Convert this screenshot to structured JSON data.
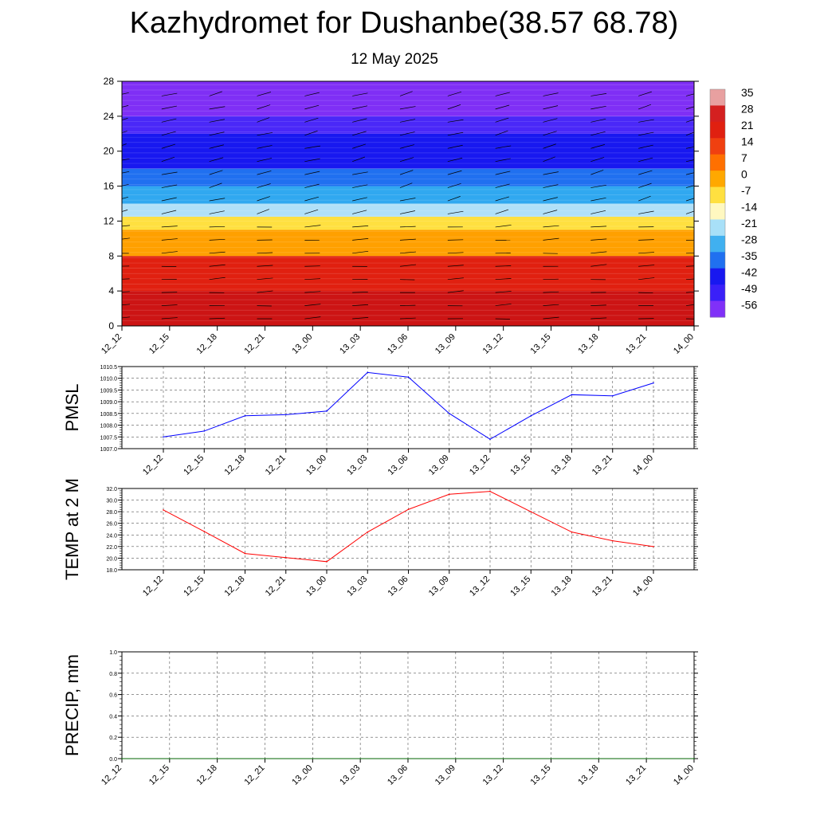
{
  "title": "Kazhydromet for Dushanbe(38.57 68.78)",
  "subtitle": "12 May 2025",
  "colors": {
    "pmsl_line": "#0000ff",
    "temp_line": "#ff0000",
    "precip_line": "#006400",
    "grid": "#555555"
  },
  "chart_data": [
    {
      "type": "heatmap",
      "name": "upper-air-cross-section",
      "x_tick_labels": [
        "12_12",
        "12_15",
        "12_18",
        "12_21",
        "13_00",
        "13_03",
        "13_06",
        "13_09",
        "13_12",
        "13_15",
        "13_18",
        "13_21",
        "14_00"
      ],
      "ylim": [
        0,
        28
      ],
      "y_tick_labels": [
        "0",
        "4",
        "8",
        "12",
        "16",
        "20",
        "24",
        "28"
      ],
      "fill": "temperature contours with wind barbs and circles",
      "colorbar": {
        "labels": [
          "35",
          "28",
          "21",
          "14",
          "7",
          "0",
          "-7",
          "-14",
          "-21",
          "-28",
          "-35",
          "-42",
          "-49",
          "-56"
        ],
        "colors": [
          "#e8a0a0",
          "#d42020",
          "#e02010",
          "#f04010",
          "#ff7000",
          "#ffa800",
          "#ffe040",
          "#fff8c0",
          "#a8e0f8",
          "#40b0f0",
          "#2070f0",
          "#1818f0",
          "#3a20f8",
          "#8030f8"
        ]
      },
      "layers": [
        {
          "y": [
            0,
            4
          ],
          "color": "#cc1414"
        },
        {
          "y": [
            4,
            8
          ],
          "color": "#e02010"
        },
        {
          "y": [
            8,
            11
          ],
          "color": "#ffa000"
        },
        {
          "y": [
            11,
            12.5
          ],
          "color": "#ffe040"
        },
        {
          "y": [
            12.5,
            14
          ],
          "color": "#b0e0f8"
        },
        {
          "y": [
            14,
            16
          ],
          "color": "#30a8f0"
        },
        {
          "y": [
            16,
            18
          ],
          "color": "#2070f0"
        },
        {
          "y": [
            18,
            22
          ],
          "color": "#1818f0"
        },
        {
          "y": [
            22,
            24
          ],
          "color": "#4a28f8"
        },
        {
          "y": [
            24,
            28
          ],
          "color": "#7f2ff5"
        }
      ]
    },
    {
      "type": "line",
      "name": "pmsl",
      "ylabel": "PMSL",
      "ylim": [
        1007.0,
        1010.5
      ],
      "y_tick_labels": [
        "1007.0",
        "1007.5",
        "1008.0",
        "1008.5",
        "1009.0",
        "1009.5",
        "1010.0",
        "1010.5"
      ],
      "x_tick_labels": [
        "12_12",
        "12_15",
        "12_18",
        "12_21",
        "13_00",
        "13_03",
        "13_06",
        "13_09",
        "13_12",
        "13_15",
        "13_18",
        "13_21",
        "14_00"
      ],
      "series": [
        {
          "x": [
            "12_12",
            "12_15",
            "12_18",
            "12_21",
            "13_00",
            "13_03",
            "13_06",
            "13_09",
            "13_12",
            "13_15",
            "13_18",
            "13_21",
            "14_00"
          ],
          "values": [
            1007.5,
            1007.75,
            1008.4,
            1008.45,
            1008.6,
            1010.25,
            1010.05,
            1008.5,
            1007.4,
            1008.4,
            1009.3,
            1009.25,
            1009.8
          ]
        }
      ]
    },
    {
      "type": "line",
      "name": "temp-2m",
      "ylabel": "TEMP at 2 M",
      "ylim": [
        18.0,
        32.0
      ],
      "y_tick_labels": [
        "18.0",
        "20.0",
        "22.0",
        "24.0",
        "26.0",
        "28.0",
        "30.0",
        "32.0"
      ],
      "x_tick_labels": [
        "12_12",
        "12_15",
        "12_18",
        "12_21",
        "13_00",
        "13_03",
        "13_06",
        "13_09",
        "13_12",
        "13_15",
        "13_18",
        "13_21",
        "14_00"
      ],
      "series": [
        {
          "x": [
            "12_12",
            "12_15",
            "12_18",
            "12_21",
            "13_00",
            "13_03",
            "13_06",
            "13_09",
            "13_12",
            "13_15",
            "13_18",
            "13_21",
            "14_00"
          ],
          "values": [
            28.3,
            24.6,
            20.8,
            20.1,
            19.4,
            24.5,
            28.4,
            31.0,
            31.5,
            28.0,
            24.5,
            23.0,
            22.0
          ]
        }
      ]
    },
    {
      "type": "line",
      "name": "precip",
      "ylabel": "PRECIP, mm",
      "ylim": [
        0.0,
        1.0
      ],
      "y_tick_labels": [
        "0.0",
        "0.2",
        "0.4",
        "0.6",
        "0.8",
        "1.0"
      ],
      "x_tick_labels": [
        "12_12",
        "12_15",
        "12_18",
        "12_21",
        "13_00",
        "13_03",
        "13_06",
        "13_09",
        "13_12",
        "13_15",
        "13_18",
        "13_21",
        "14_00"
      ],
      "series": [
        {
          "x": [
            "12_12",
            "14_00"
          ],
          "values": [
            0.0,
            0.0
          ]
        }
      ]
    }
  ]
}
